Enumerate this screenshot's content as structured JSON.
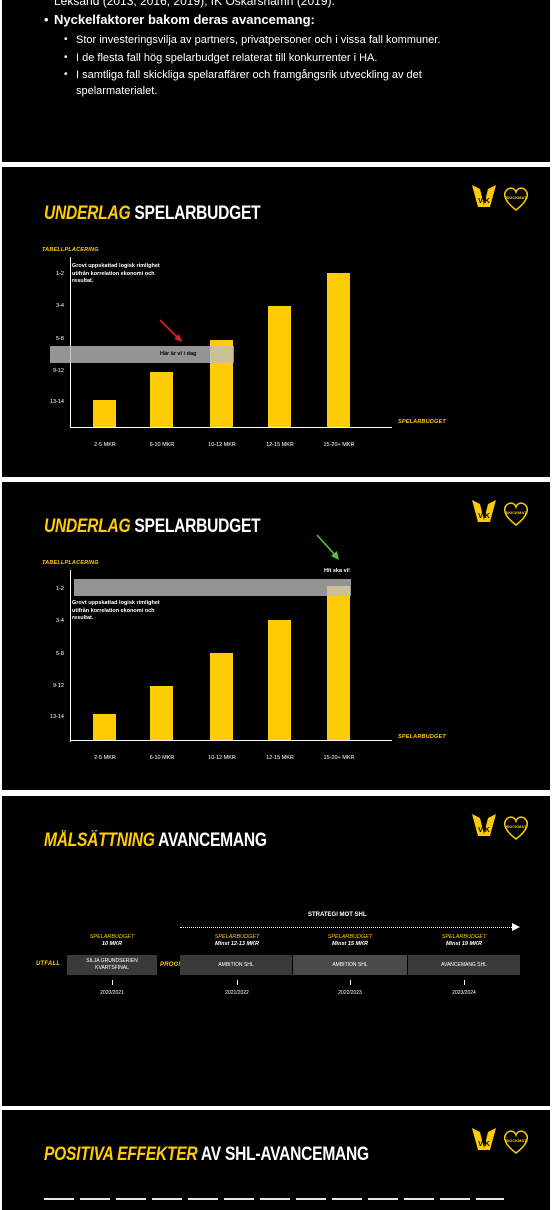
{
  "slide1": {
    "top_line": "Leksand (2013, 2016, 2019), IK Oskarshamn (2019).",
    "heading": "Nyckelfaktorer bakom deras avancemang:",
    "items": [
      "Stor investeringsvilja av partners, privatpersoner och i vissa fall kommuner.",
      "I de flesta fall hög spelarbudget relaterat till konkurrenter i HA.",
      "I samtliga fall skickliga spelaraffärer och framgångsrik utveckling av det",
      "spelarmaterialet."
    ]
  },
  "slide2": {
    "title_highlight": "UNDERLAG",
    "title_rest": "SPELARBUDGET",
    "y_axis_label": "TABELLPLACERING",
    "x_axis_label": "SPELARBUDGET",
    "y_ticks": [
      "1-2",
      "3-4",
      "5-8",
      "9-12",
      "13-14"
    ],
    "x_ticks": [
      "2-5 MKR",
      "6-10 MKR",
      "10-12 MKR",
      "12-15 MKR",
      "15-20+ MKR"
    ],
    "note": [
      "Grovt uppskattad logisk rimlighet",
      "utifrån korrelation ekonomi och",
      "resultat."
    ],
    "band_label": "Här är vi i dag",
    "colors": {
      "bar": "#FFCB05",
      "arrow": "#E02020"
    }
  },
  "slide3": {
    "title_highlight": "UNDERLAG",
    "title_rest": "SPELARBUDGET",
    "y_axis_label": "TABELLPLACERING",
    "x_axis_label": "SPELARBUDGET",
    "y_ticks": [
      "1-2",
      "3-4",
      "5-8",
      "9-12",
      "13-14"
    ],
    "x_ticks": [
      "2-5 MKR",
      "6-10 MKR",
      "10-12 MKR",
      "12-15 MKR",
      "15-20+ MKR"
    ],
    "note": [
      "Grovt uppskattad logisk rimlighet",
      "utifrån korrelation ekonomi och",
      "resultat."
    ],
    "band_label": "Hit ska vi!",
    "colors": {
      "bar": "#FFCB05",
      "arrow": "#5DBB46"
    }
  },
  "chart_data": [
    {
      "type": "bar",
      "title": "UNDERLAG SPELARBUDGET",
      "xlabel": "SPELARBUDGET",
      "ylabel": "TABELLPLACERING",
      "categories": [
        "2-5 MKR",
        "6-10 MKR",
        "10-12 MKR",
        "12-15 MKR",
        "15-20+ MKR"
      ],
      "y_categories": [
        "13-14",
        "9-12",
        "5-8",
        "3-4",
        "1-2"
      ],
      "values": [
        1,
        2,
        3,
        4,
        5
      ],
      "highlight": {
        "label": "Här är vi i dag",
        "level": "5-8"
      }
    },
    {
      "type": "bar",
      "title": "UNDERLAG SPELARBUDGET",
      "xlabel": "SPELARBUDGET",
      "ylabel": "TABELLPLACERING",
      "categories": [
        "2-5 MKR",
        "6-10 MKR",
        "10-12 MKR",
        "12-15 MKR",
        "15-20+ MKR"
      ],
      "y_categories": [
        "13-14",
        "9-12",
        "5-8",
        "3-4",
        "1-2"
      ],
      "values": [
        1,
        2,
        3,
        4,
        5
      ],
      "highlight": {
        "label": "Hit ska vi!",
        "level": "1-2"
      }
    }
  ],
  "slide4": {
    "title_highlight": "MÅLSÄTTNING",
    "title_rest": "AVANCEMANG",
    "strategy": "STRATEGI MOT SHL",
    "utfall": "UTFALL",
    "prognos": "PROGNOS",
    "budget_label": "SPELARBUDGET",
    "columns": [
      {
        "amount": "10 MKR",
        "box": [
          "SILJA GRUNDSERIEN",
          "KVARTSFINAL"
        ],
        "year": "2020/2021"
      },
      {
        "amount": "Minst 12-13 MKR",
        "box": [
          "AMBITION SHL"
        ],
        "year": "2021/2022"
      },
      {
        "amount": "Minst 15 MKR",
        "box": [
          "AMBITION SHL"
        ],
        "year": "2022/2023"
      },
      {
        "amount": "Minst 19 MKR",
        "box": [
          "AVANCEMANG SHL"
        ],
        "year": "2023/2024"
      }
    ]
  },
  "slide5": {
    "title_highlight": "POSITIVA EFFEKTER",
    "title_rest": "AV SHL-AVANCEMANG"
  },
  "brand": {
    "yellow": "#FFCB05",
    "logo_text": "VIK",
    "badge_text": "SKICKMAT"
  }
}
